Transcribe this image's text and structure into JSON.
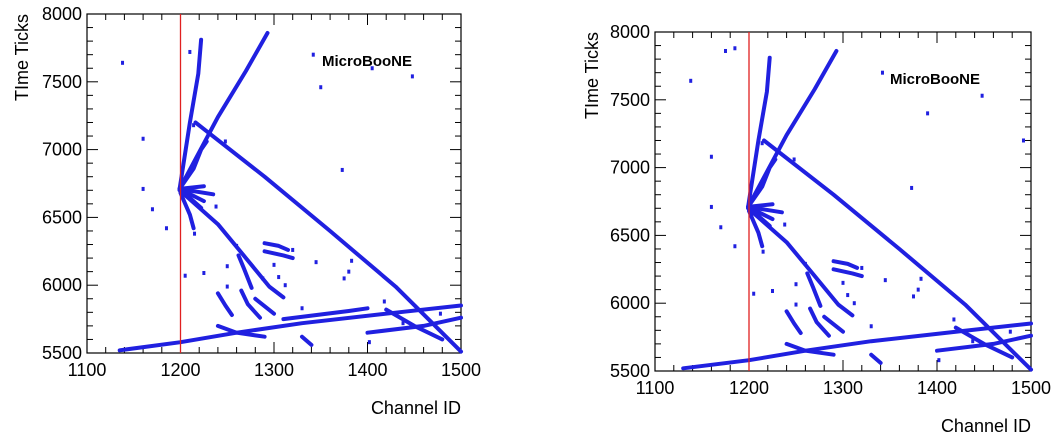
{
  "chart_data": [
    {
      "type": "scatter",
      "xlabel": "Channel ID",
      "ylabel": "TIme Ticks",
      "annotation": "MicroBooNE",
      "xlim": [
        1100,
        1500
      ],
      "ylim": [
        5500,
        8000
      ],
      "xticks": [
        1100,
        1200,
        1300,
        1400,
        1500
      ],
      "yticks": [
        5500,
        6000,
        6500,
        7000,
        7500,
        8000
      ],
      "marker_color": "#2020e0",
      "vertical_line": {
        "x": 1200,
        "color": "#e02020"
      },
      "tracks": [
        {
          "points": [
            [
              1199,
              6710
            ],
            [
              1210,
              7200
            ],
            [
              1219,
              7560
            ],
            [
              1222,
              7810
            ]
          ]
        },
        {
          "points": [
            [
              1199,
              6710
            ],
            [
              1240,
              7240
            ],
            [
              1270,
              7580
            ],
            [
              1293,
              7860
            ]
          ]
        },
        {
          "points": [
            [
              1199,
              6710
            ],
            [
              1214,
              6860
            ],
            [
              1222,
              7000
            ],
            [
              1228,
              7060
            ]
          ]
        },
        {
          "points": [
            [
              1216,
              7200
            ],
            [
              1290,
              6800
            ],
            [
              1360,
              6400
            ],
            [
              1430,
              5990
            ],
            [
              1500,
              5510
            ]
          ]
        },
        {
          "points": [
            [
              1199,
              6710
            ],
            [
              1225,
              6730
            ]
          ]
        },
        {
          "points": [
            [
              1199,
              6710
            ],
            [
              1235,
              6670
            ]
          ]
        },
        {
          "points": [
            [
              1199,
              6710
            ],
            [
              1225,
              6620
            ]
          ]
        },
        {
          "points": [
            [
              1199,
              6710
            ],
            [
              1222,
              6570
            ]
          ]
        },
        {
          "points": [
            [
              1199,
              6700
            ],
            [
              1240,
              6450
            ],
            [
              1270,
              6200
            ],
            [
              1295,
              5990
            ],
            [
              1310,
              5910
            ]
          ]
        },
        {
          "points": [
            [
              1200,
              6680
            ],
            [
              1210,
              6520
            ],
            [
              1214,
              6420
            ]
          ]
        },
        {
          "points": [
            [
              1135,
              5520
            ],
            [
              1200,
              5580
            ],
            [
              1260,
              5650
            ],
            [
              1330,
              5720
            ],
            [
              1420,
              5790
            ],
            [
              1500,
              5850
            ]
          ]
        },
        {
          "points": [
            [
              1310,
              5750
            ],
            [
              1380,
              5810
            ],
            [
              1400,
              5830
            ]
          ]
        },
        {
          "points": [
            [
              1400,
              5650
            ],
            [
              1460,
              5700
            ],
            [
              1500,
              5760
            ]
          ]
        },
        {
          "points": [
            [
              1420,
              5820
            ],
            [
              1450,
              5700
            ],
            [
              1480,
              5600
            ]
          ]
        },
        {
          "points": [
            [
              1262,
              6220
            ],
            [
              1268,
              6120
            ],
            [
              1276,
              5980
            ]
          ]
        },
        {
          "points": [
            [
              1240,
              5940
            ],
            [
              1248,
              5850
            ],
            [
              1255,
              5780
            ]
          ]
        },
        {
          "points": [
            [
              1265,
              5960
            ],
            [
              1272,
              5860
            ],
            [
              1285,
              5760
            ]
          ]
        },
        {
          "points": [
            [
              1280,
              5900
            ],
            [
              1300,
              5790
            ]
          ]
        },
        {
          "points": [
            [
              1330,
              5620
            ],
            [
              1340,
              5560
            ]
          ]
        },
        {
          "points": [
            [
              1290,
              6310
            ],
            [
              1305,
              6290
            ],
            [
              1315,
              6260
            ]
          ]
        },
        {
          "points": [
            [
              1290,
              6250
            ],
            [
              1310,
              6220
            ],
            [
              1320,
              6200
            ]
          ]
        },
        {
          "points": [
            [
              1240,
              5700
            ],
            [
              1260,
              5650
            ],
            [
              1290,
              5620
            ]
          ]
        }
      ],
      "scatter_points": [
        [
          1138,
          7640
        ],
        [
          1210,
          7720
        ],
        [
          1342,
          7700
        ],
        [
          1448,
          7540
        ],
        [
          1350,
          7460
        ],
        [
          1405,
          7600
        ],
        [
          1160,
          7080
        ],
        [
          1373,
          6850
        ],
        [
          1170,
          6560
        ],
        [
          1185,
          6420
        ],
        [
          1215,
          6380
        ],
        [
          1238,
          6580
        ],
        [
          1320,
          6260
        ],
        [
          1345,
          6170
        ],
        [
          1383,
          6180
        ],
        [
          1375,
          6050
        ],
        [
          1305,
          6060
        ],
        [
          1250,
          6140
        ],
        [
          1225,
          6090
        ],
        [
          1330,
          5830
        ],
        [
          1312,
          6000
        ],
        [
          1250,
          5990
        ],
        [
          1214,
          7180
        ],
        [
          1232,
          7120
        ],
        [
          1248,
          7060
        ],
        [
          1288,
          6050
        ],
        [
          1418,
          5880
        ],
        [
          1438,
          5720
        ],
        [
          1478,
          5790
        ],
        [
          1402,
          5580
        ],
        [
          1160,
          6710
        ],
        [
          1205,
          6070
        ],
        [
          1260,
          6290
        ],
        [
          1300,
          6150
        ],
        [
          1380,
          6100
        ]
      ]
    },
    {
      "type": "scatter",
      "xlabel": "Channel ID",
      "ylabel": "TIme Ticks",
      "annotation": "MicroBooNE",
      "xlim": [
        1100,
        1500
      ],
      "ylim": [
        5500,
        8000
      ],
      "xticks": [
        1100,
        1200,
        1300,
        1400,
        1500
      ],
      "yticks": [
        5500,
        6000,
        6500,
        7000,
        7500,
        8000
      ],
      "marker_color": "#2020e0",
      "vertical_line": {
        "x": 1200,
        "color": "#e02020"
      },
      "tracks": [
        {
          "points": [
            [
              1199,
              6710
            ],
            [
              1210,
              7200
            ],
            [
              1219,
              7560
            ],
            [
              1222,
              7810
            ]
          ]
        },
        {
          "points": [
            [
              1199,
              6710
            ],
            [
              1240,
              7240
            ],
            [
              1270,
              7580
            ],
            [
              1293,
              7860
            ]
          ]
        },
        {
          "points": [
            [
              1199,
              6710
            ],
            [
              1214,
              6860
            ],
            [
              1222,
              7000
            ],
            [
              1228,
              7060
            ]
          ]
        },
        {
          "points": [
            [
              1216,
              7200
            ],
            [
              1290,
              6800
            ],
            [
              1360,
              6400
            ],
            [
              1430,
              5990
            ],
            [
              1500,
              5510
            ]
          ]
        },
        {
          "points": [
            [
              1199,
              6710
            ],
            [
              1225,
              6730
            ]
          ]
        },
        {
          "points": [
            [
              1199,
              6710
            ],
            [
              1235,
              6670
            ]
          ]
        },
        {
          "points": [
            [
              1199,
              6710
            ],
            [
              1225,
              6620
            ]
          ]
        },
        {
          "points": [
            [
              1199,
              6710
            ],
            [
              1222,
              6570
            ]
          ]
        },
        {
          "points": [
            [
              1199,
              6700
            ],
            [
              1240,
              6450
            ],
            [
              1270,
              6200
            ],
            [
              1295,
              5990
            ],
            [
              1310,
              5910
            ]
          ]
        },
        {
          "points": [
            [
              1200,
              6680
            ],
            [
              1210,
              6520
            ],
            [
              1214,
              6420
            ]
          ]
        },
        {
          "points": [
            [
              1130,
              5520
            ],
            [
              1200,
              5580
            ],
            [
              1260,
              5650
            ],
            [
              1330,
              5720
            ],
            [
              1420,
              5790
            ],
            [
              1500,
              5850
            ]
          ]
        },
        {
          "points": [
            [
              1400,
              5650
            ],
            [
              1460,
              5700
            ],
            [
              1500,
              5760
            ]
          ]
        },
        {
          "points": [
            [
              1420,
              5820
            ],
            [
              1450,
              5700
            ],
            [
              1480,
              5600
            ]
          ]
        },
        {
          "points": [
            [
              1262,
              6220
            ],
            [
              1268,
              6120
            ],
            [
              1276,
              5980
            ]
          ]
        },
        {
          "points": [
            [
              1240,
              5940
            ],
            [
              1248,
              5850
            ],
            [
              1255,
              5780
            ]
          ]
        },
        {
          "points": [
            [
              1265,
              5960
            ],
            [
              1272,
              5860
            ],
            [
              1285,
              5760
            ]
          ]
        },
        {
          "points": [
            [
              1280,
              5900
            ],
            [
              1300,
              5790
            ]
          ]
        },
        {
          "points": [
            [
              1330,
              5620
            ],
            [
              1340,
              5560
            ]
          ]
        },
        {
          "points": [
            [
              1290,
              6310
            ],
            [
              1305,
              6290
            ],
            [
              1315,
              6260
            ]
          ]
        },
        {
          "points": [
            [
              1290,
              6250
            ],
            [
              1310,
              6220
            ],
            [
              1320,
              6200
            ]
          ]
        },
        {
          "points": [
            [
              1240,
              5700
            ],
            [
              1260,
              5650
            ],
            [
              1290,
              5620
            ]
          ]
        }
      ],
      "scatter_points": [
        [
          1138,
          7640
        ],
        [
          1175,
          7860
        ],
        [
          1185,
          7880
        ],
        [
          1342,
          7700
        ],
        [
          1448,
          7530
        ],
        [
          1390,
          7400
        ],
        [
          1160,
          7080
        ],
        [
          1373,
          6850
        ],
        [
          1170,
          6560
        ],
        [
          1185,
          6420
        ],
        [
          1215,
          6380
        ],
        [
          1238,
          6580
        ],
        [
          1320,
          6260
        ],
        [
          1345,
          6170
        ],
        [
          1383,
          6180
        ],
        [
          1375,
          6050
        ],
        [
          1305,
          6060
        ],
        [
          1250,
          6140
        ],
        [
          1225,
          6090
        ],
        [
          1330,
          5830
        ],
        [
          1312,
          6000
        ],
        [
          1250,
          5990
        ],
        [
          1214,
          7180
        ],
        [
          1232,
          7120
        ],
        [
          1248,
          7060
        ],
        [
          1418,
          5880
        ],
        [
          1438,
          5720
        ],
        [
          1478,
          5790
        ],
        [
          1402,
          5580
        ],
        [
          1160,
          6710
        ],
        [
          1205,
          6070
        ],
        [
          1260,
          6290
        ],
        [
          1300,
          6150
        ],
        [
          1380,
          6100
        ],
        [
          1492,
          7200
        ]
      ]
    }
  ]
}
